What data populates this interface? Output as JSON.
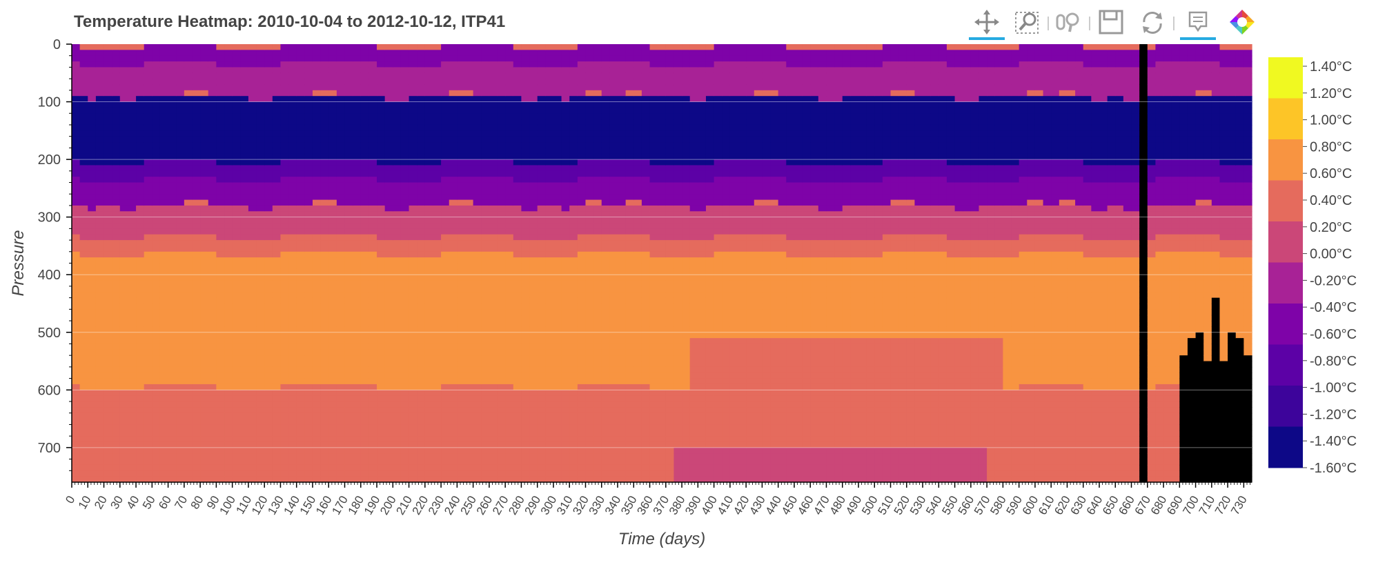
{
  "toolbar": {
    "tools": [
      {
        "name": "pan-tool",
        "icon": "pan-icon",
        "active": true
      },
      {
        "name": "box-zoom-tool",
        "icon": "box-zoom-icon",
        "active": false
      },
      {
        "name": "wheel-zoom-tool",
        "icon": "wheel-zoom-icon",
        "active": false
      },
      {
        "name": "save-tool",
        "icon": "save-icon",
        "active": false
      },
      {
        "name": "reset-tool",
        "icon": "reset-icon",
        "active": false
      },
      {
        "name": "hover-tool",
        "icon": "hover-icon",
        "active": true
      },
      {
        "name": "bokeh-logo",
        "icon": "bokeh-logo-icon",
        "active": false
      }
    ]
  },
  "chart_data": {
    "type": "heatmap",
    "title": "Temperature Heatmap: 2010-10-04 to 2012-10-12, ITP41",
    "xlabel": "Time (days)",
    "ylabel": "Pressure",
    "xlim": [
      0,
      735
    ],
    "ylim": [
      760,
      0
    ],
    "x_ticks": [
      0,
      10,
      20,
      30,
      40,
      50,
      60,
      70,
      80,
      90,
      100,
      110,
      120,
      130,
      140,
      150,
      160,
      170,
      180,
      190,
      200,
      210,
      220,
      230,
      240,
      250,
      260,
      270,
      280,
      290,
      300,
      310,
      320,
      330,
      340,
      350,
      360,
      370,
      380,
      390,
      400,
      410,
      420,
      430,
      440,
      450,
      460,
      470,
      480,
      490,
      500,
      510,
      520,
      530,
      540,
      550,
      560,
      570,
      580,
      590,
      600,
      610,
      620,
      630,
      640,
      650,
      660,
      670,
      680,
      690,
      700,
      710,
      720,
      730
    ],
    "y_ticks": [
      0,
      100,
      200,
      300,
      400,
      500,
      600,
      700
    ],
    "grid": true,
    "colorbar": {
      "labels": [
        "1.40°C",
        "1.20°C",
        "1.00°C",
        "0.80°C",
        "0.60°C",
        "0.40°C",
        "0.20°C",
        "0.00°C",
        "-0.20°C",
        "-0.40°C",
        "-0.60°C",
        "-0.80°C",
        "-1.00°C",
        "-1.20°C",
        "-1.40°C",
        "-1.60°C"
      ],
      "colors": [
        "#f0f921",
        "#fdc527",
        "#f89441",
        "#e56b5d",
        "#cb4778",
        "#a82296",
        "#7e03a8",
        "#5c01a6",
        "#3d049b",
        "#0d0887"
      ]
    },
    "layers_description_in_data_units": [
      {
        "temp": -0.5,
        "p_top": 0,
        "p_bottom": 30
      },
      {
        "temp": -0.2,
        "p_top": 30,
        "p_bottom": 85
      },
      {
        "temp": -1.4,
        "p_top": 85,
        "p_bottom": 200
      },
      {
        "temp": -0.8,
        "p_top": 200,
        "p_bottom": 230
      },
      {
        "temp": -0.4,
        "p_top": 230,
        "p_bottom": 275
      },
      {
        "temp": 0.1,
        "p_top": 275,
        "p_bottom": 330
      },
      {
        "temp": 0.5,
        "p_top": 330,
        "p_bottom": 360
      },
      {
        "temp": 0.9,
        "p_top": 360,
        "p_bottom": 590
      },
      {
        "temp": 0.5,
        "p_top": 590,
        "p_bottom": 760
      }
    ]
  }
}
